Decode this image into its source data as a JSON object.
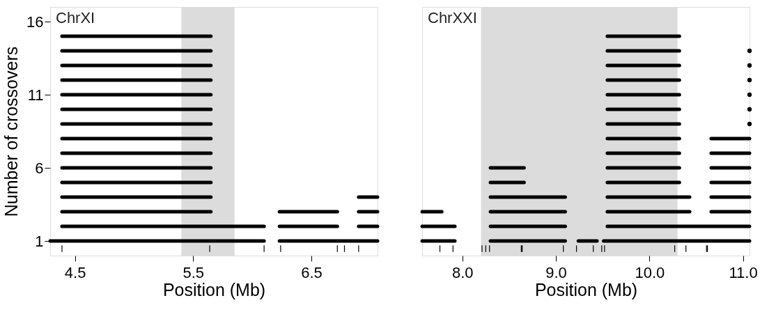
{
  "chart_data": [
    {
      "type": "line",
      "xlabel": "Position (Mb)",
      "ylabel": "Number of crossovers",
      "annotations": [
        "ChrXI"
      ],
      "xlim": [
        4.29,
        7.06
      ],
      "ylim": [
        0,
        17
      ],
      "xticks": [
        4.5,
        5.5,
        6.5
      ],
      "yticks": [
        1,
        6,
        11,
        16
      ],
      "grid": false,
      "bands": [
        {
          "axis": "x",
          "from": 5.4,
          "to": 5.85,
          "color": "#dcdcdc"
        }
      ],
      "series": [
        {
          "color": "#000000",
          "x": [
            4.29,
            6.1
          ],
          "values": [
            1,
            1
          ]
        },
        {
          "color": "#000000",
          "x": [
            6.23,
            7.06
          ],
          "values": [
            1,
            1
          ]
        },
        {
          "color": "#000000",
          "x": [
            4.39,
            6.1
          ],
          "values": [
            2,
            2
          ]
        },
        {
          "color": "#000000",
          "x": [
            6.23,
            6.72
          ],
          "values": [
            2,
            2
          ]
        },
        {
          "color": "#000000",
          "x": [
            6.9,
            7.06
          ],
          "values": [
            2,
            2
          ]
        },
        {
          "color": "#000000",
          "x": [
            4.39,
            5.65
          ],
          "values": [
            3,
            3
          ]
        },
        {
          "color": "#000000",
          "x": [
            6.23,
            6.72
          ],
          "values": [
            3,
            3
          ]
        },
        {
          "color": "#000000",
          "x": [
            6.9,
            7.06
          ],
          "values": [
            3,
            3
          ]
        },
        {
          "color": "#000000",
          "x": [
            4.39,
            5.65
          ],
          "values": [
            4,
            4
          ]
        },
        {
          "color": "#000000",
          "x": [
            6.9,
            7.06
          ],
          "values": [
            4,
            4
          ]
        },
        {
          "color": "#000000",
          "x": [
            4.39,
            5.65
          ],
          "values": [
            5,
            5
          ]
        },
        {
          "color": "#000000",
          "x": [
            4.39,
            5.65
          ],
          "values": [
            6,
            6
          ]
        },
        {
          "color": "#000000",
          "x": [
            4.39,
            5.65
          ],
          "values": [
            7,
            7
          ]
        },
        {
          "color": "#000000",
          "x": [
            4.39,
            5.65
          ],
          "values": [
            8,
            8
          ]
        },
        {
          "color": "#000000",
          "x": [
            4.39,
            5.65
          ],
          "values": [
            9,
            9
          ]
        },
        {
          "color": "#000000",
          "x": [
            4.39,
            5.65
          ],
          "values": [
            10,
            10
          ]
        },
        {
          "color": "#000000",
          "x": [
            4.39,
            5.65
          ],
          "values": [
            11,
            11
          ]
        },
        {
          "color": "#000000",
          "x": [
            4.39,
            5.65
          ],
          "values": [
            12,
            12
          ]
        },
        {
          "color": "#000000",
          "x": [
            4.39,
            5.65
          ],
          "values": [
            13,
            13
          ]
        },
        {
          "color": "#000000",
          "x": [
            4.39,
            5.65
          ],
          "values": [
            14,
            14
          ]
        },
        {
          "color": "#000000",
          "x": [
            4.39,
            5.65
          ],
          "values": [
            15,
            15
          ]
        },
        {
          "color": "#000000",
          "x": [
            4.39,
            4.39
          ],
          "values": [
            0.25,
            0.7
          ]
        },
        {
          "color": "#000000",
          "x": [
            5.64,
            5.64
          ],
          "values": [
            0.25,
            0.7
          ]
        },
        {
          "color": "#000000",
          "x": [
            6.1,
            6.1
          ],
          "values": [
            0.25,
            0.7
          ]
        },
        {
          "color": "#000000",
          "x": [
            6.24,
            6.24
          ],
          "values": [
            0.25,
            0.7
          ]
        },
        {
          "color": "#000000",
          "x": [
            6.72,
            6.72
          ],
          "values": [
            0.25,
            0.7
          ]
        },
        {
          "color": "#000000",
          "x": [
            6.78,
            6.78
          ],
          "values": [
            0.25,
            0.7
          ]
        },
        {
          "color": "#000000",
          "x": [
            6.9,
            6.9
          ],
          "values": [
            0.25,
            0.7
          ]
        }
      ]
    },
    {
      "type": "line",
      "xlabel": "Position (Mb)",
      "annotations": [
        "ChrXXI"
      ],
      "tick_labels": "x",
      "xlim": [
        7.57,
        11.07
      ],
      "ylim": [
        0,
        17
      ],
      "xticks": [
        {
          "value": 8,
          "label": "8.0"
        },
        {
          "value": 9,
          "label": "9.0"
        },
        {
          "value": 10,
          "label": "10.0"
        },
        {
          "value": 11,
          "label": "11.0"
        }
      ],
      "grid": false,
      "bands": [
        {
          "axis": "x",
          "from": 8.2,
          "to": 10.3,
          "color": "#dcdcdc"
        }
      ],
      "series": [
        {
          "color": "#000000",
          "x": [
            7.57,
            7.92
          ],
          "values": [
            1,
            1
          ]
        },
        {
          "color": "#000000",
          "x": [
            8.3,
            9.1
          ],
          "values": [
            1,
            1
          ]
        },
        {
          "color": "#000000",
          "x": [
            9.24,
            9.44
          ],
          "values": [
            1,
            1
          ]
        },
        {
          "color": "#000000",
          "x": [
            9.51,
            11.07
          ],
          "values": [
            1,
            1
          ]
        },
        {
          "color": "#000000",
          "x": [
            7.57,
            7.92
          ],
          "values": [
            2,
            2
          ]
        },
        {
          "color": "#000000",
          "x": [
            8.3,
            9.1
          ],
          "values": [
            2,
            2
          ]
        },
        {
          "color": "#000000",
          "x": [
            9.55,
            11.07
          ],
          "values": [
            2,
            2
          ]
        },
        {
          "color": "#000000",
          "x": [
            7.57,
            7.78
          ],
          "values": [
            3,
            3
          ]
        },
        {
          "color": "#000000",
          "x": [
            8.3,
            9.1
          ],
          "values": [
            3,
            3
          ]
        },
        {
          "color": "#000000",
          "x": [
            9.55,
            10.43
          ],
          "values": [
            3,
            3
          ]
        },
        {
          "color": "#000000",
          "x": [
            10.66,
            11.07
          ],
          "values": [
            3,
            3
          ]
        },
        {
          "color": "#000000",
          "x": [
            8.3,
            9.1
          ],
          "values": [
            4,
            4
          ]
        },
        {
          "color": "#000000",
          "x": [
            9.55,
            10.43
          ],
          "values": [
            4,
            4
          ]
        },
        {
          "color": "#000000",
          "x": [
            10.66,
            11.07
          ],
          "values": [
            4,
            4
          ]
        },
        {
          "color": "#000000",
          "x": [
            8.3,
            8.66
          ],
          "values": [
            5,
            5
          ]
        },
        {
          "color": "#000000",
          "x": [
            9.55,
            10.32
          ],
          "values": [
            5,
            5
          ]
        },
        {
          "color": "#000000",
          "x": [
            10.66,
            11.07
          ],
          "values": [
            5,
            5
          ]
        },
        {
          "color": "#000000",
          "x": [
            8.3,
            8.66
          ],
          "values": [
            6,
            6
          ]
        },
        {
          "color": "#000000",
          "x": [
            9.55,
            10.32
          ],
          "values": [
            6,
            6
          ]
        },
        {
          "color": "#000000",
          "x": [
            10.66,
            11.07
          ],
          "values": [
            6,
            6
          ]
        },
        {
          "color": "#000000",
          "x": [
            9.55,
            10.32
          ],
          "values": [
            7,
            7
          ]
        },
        {
          "color": "#000000",
          "x": [
            10.66,
            11.07
          ],
          "values": [
            7,
            7
          ]
        },
        {
          "color": "#000000",
          "x": [
            9.55,
            10.32
          ],
          "values": [
            8,
            8
          ]
        },
        {
          "color": "#000000",
          "x": [
            10.66,
            11.07
          ],
          "values": [
            8,
            8
          ]
        },
        {
          "color": "#000000",
          "x": [
            9.55,
            10.32
          ],
          "values": [
            9,
            9
          ]
        },
        {
          "color": "#000000",
          "x": [
            9.55,
            10.32
          ],
          "values": [
            10,
            10
          ]
        },
        {
          "color": "#000000",
          "x": [
            9.55,
            10.32
          ],
          "values": [
            11,
            11
          ]
        },
        {
          "color": "#000000",
          "x": [
            9.55,
            10.32
          ],
          "values": [
            12,
            12
          ]
        },
        {
          "color": "#000000",
          "x": [
            9.55,
            10.32
          ],
          "values": [
            13,
            13
          ]
        },
        {
          "color": "#000000",
          "x": [
            9.55,
            10.32
          ],
          "values": [
            14,
            14
          ]
        },
        {
          "color": "#000000",
          "x": [
            9.55,
            10.32
          ],
          "values": [
            15,
            15
          ]
        },
        {
          "type": "scatter",
          "marker": "circle",
          "color": "#000000",
          "x": [
            11.07,
            11.07,
            11.07,
            11.07,
            11.07,
            11.07
          ],
          "values": [
            9,
            10,
            11,
            12,
            13,
            14
          ]
        },
        {
          "color": "#000000",
          "x": [
            7.76,
            7.76
          ],
          "values": [
            0.25,
            0.7
          ]
        },
        {
          "color": "#000000",
          "x": [
            7.9,
            7.9
          ],
          "values": [
            0.25,
            0.7
          ]
        },
        {
          "color": "#000000",
          "x": [
            8.21,
            8.21
          ],
          "values": [
            0.25,
            0.7
          ]
        },
        {
          "color": "#000000",
          "x": [
            8.25,
            8.25
          ],
          "values": [
            0.25,
            0.7
          ]
        },
        {
          "color": "#000000",
          "x": [
            8.29,
            8.29
          ],
          "values": [
            0.25,
            0.7
          ]
        },
        {
          "color": "#000000",
          "x": [
            8.63,
            8.63
          ],
          "values": [
            0.25,
            0.7
          ]
        },
        {
          "color": "#000000",
          "x": [
            8.64,
            8.64
          ],
          "values": [
            0.25,
            0.7
          ]
        },
        {
          "color": "#000000",
          "x": [
            9.08,
            9.08
          ],
          "values": [
            0.25,
            0.7
          ]
        },
        {
          "color": "#000000",
          "x": [
            9.22,
            9.22
          ],
          "values": [
            0.25,
            0.7
          ]
        },
        {
          "color": "#000000",
          "x": [
            9.4,
            9.4
          ],
          "values": [
            0.25,
            0.7
          ]
        },
        {
          "color": "#000000",
          "x": [
            9.49,
            9.49
          ],
          "values": [
            0.25,
            0.7
          ]
        },
        {
          "color": "#000000",
          "x": [
            9.52,
            9.52
          ],
          "values": [
            0.25,
            0.7
          ]
        },
        {
          "color": "#000000",
          "x": [
            10.27,
            10.27
          ],
          "values": [
            0.25,
            0.7
          ]
        },
        {
          "color": "#000000",
          "x": [
            10.39,
            10.39
          ],
          "values": [
            0.25,
            0.7
          ]
        },
        {
          "color": "#000000",
          "x": [
            10.61,
            10.61
          ],
          "values": [
            0.25,
            0.7
          ]
        },
        {
          "color": "#000000",
          "x": [
            10.62,
            10.62
          ],
          "values": [
            0.25,
            0.7
          ]
        }
      ]
    }
  ]
}
